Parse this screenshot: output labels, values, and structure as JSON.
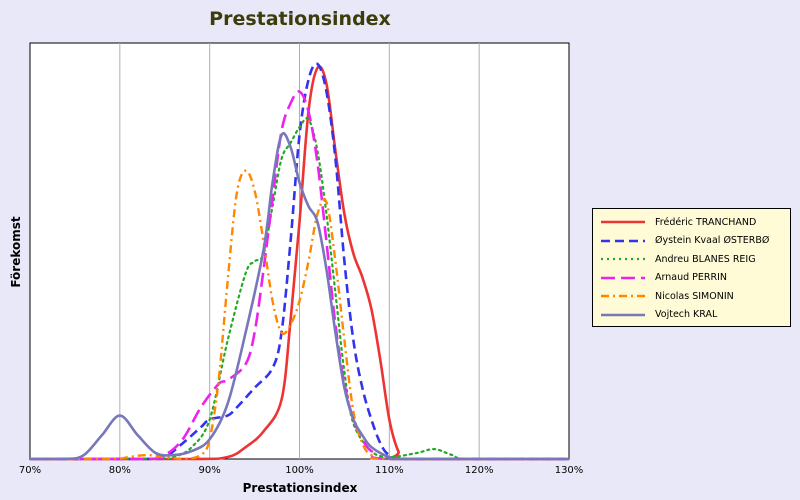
{
  "chart_data": {
    "type": "line",
    "title": "Prestationsindex",
    "xlabel": "Prestationsindex",
    "ylabel": "Förekomst",
    "xlim": [
      70,
      130
    ],
    "ylim": [
      0,
      1
    ],
    "x_ticks": [
      "70%",
      "80%",
      "90%",
      "100%",
      "110%",
      "120%",
      "130%"
    ],
    "grid": "vertical",
    "legend_position": "right",
    "series": [
      {
        "name": "Frédéric TRANCHAND",
        "color": "#ee3333",
        "style": "solid",
        "points": [
          [
            70,
            0
          ],
          [
            88,
            0
          ],
          [
            92,
            0.005
          ],
          [
            94,
            0.03
          ],
          [
            96,
            0.07
          ],
          [
            98,
            0.15
          ],
          [
            99,
            0.35
          ],
          [
            100,
            0.6
          ],
          [
            101,
            0.88
          ],
          [
            102,
            0.99
          ],
          [
            103,
            0.95
          ],
          [
            104,
            0.78
          ],
          [
            105,
            0.62
          ],
          [
            106,
            0.52
          ],
          [
            107,
            0.46
          ],
          [
            108,
            0.38
          ],
          [
            109,
            0.25
          ],
          [
            110,
            0.1
          ],
          [
            111,
            0.02
          ],
          [
            112,
            0
          ],
          [
            130,
            0
          ]
        ]
      },
      {
        "name": "Øystein Kvaal ØSTERBØ",
        "color": "#3333ee",
        "style": "dashed",
        "points": [
          [
            70,
            0
          ],
          [
            83,
            0
          ],
          [
            85,
            0.005
          ],
          [
            87,
            0.04
          ],
          [
            89,
            0.08
          ],
          [
            90,
            0.1
          ],
          [
            92,
            0.11
          ],
          [
            93,
            0.13
          ],
          [
            95,
            0.18
          ],
          [
            97,
            0.23
          ],
          [
            98,
            0.32
          ],
          [
            99,
            0.55
          ],
          [
            100,
            0.82
          ],
          [
            101,
            0.96
          ],
          [
            102,
            1.0
          ],
          [
            103,
            0.93
          ],
          [
            104,
            0.76
          ],
          [
            105,
            0.5
          ],
          [
            106,
            0.3
          ],
          [
            107,
            0.18
          ],
          [
            108,
            0.1
          ],
          [
            109,
            0.04
          ],
          [
            110,
            0.01
          ],
          [
            112,
            0
          ],
          [
            130,
            0
          ]
        ]
      },
      {
        "name": "Andreu BLANES REIG",
        "color": "#22aa22",
        "style": "dotted",
        "points": [
          [
            70,
            0
          ],
          [
            84,
            0
          ],
          [
            86,
            0.005
          ],
          [
            88,
            0.03
          ],
          [
            90,
            0.1
          ],
          [
            92,
            0.3
          ],
          [
            94,
            0.47
          ],
          [
            95,
            0.5
          ],
          [
            96,
            0.52
          ],
          [
            97,
            0.64
          ],
          [
            98,
            0.76
          ],
          [
            99,
            0.8
          ],
          [
            100,
            0.84
          ],
          [
            101,
            0.86
          ],
          [
            102,
            0.78
          ],
          [
            103,
            0.62
          ],
          [
            104,
            0.42
          ],
          [
            105,
            0.22
          ],
          [
            106,
            0.09
          ],
          [
            108,
            0.02
          ],
          [
            110,
            0.005
          ],
          [
            113,
            0.015
          ],
          [
            115,
            0.025
          ],
          [
            117,
            0.01
          ],
          [
            119,
            0
          ],
          [
            130,
            0
          ]
        ]
      },
      {
        "name": "Arnaud PERRIN",
        "color": "#ee22ee",
        "style": "longdash",
        "points": [
          [
            70,
            0
          ],
          [
            83,
            0
          ],
          [
            85,
            0.01
          ],
          [
            87,
            0.05
          ],
          [
            89,
            0.13
          ],
          [
            91,
            0.19
          ],
          [
            92,
            0.2
          ],
          [
            94,
            0.24
          ],
          [
            95,
            0.32
          ],
          [
            96,
            0.48
          ],
          [
            97,
            0.66
          ],
          [
            98,
            0.83
          ],
          [
            99,
            0.9
          ],
          [
            100,
            0.93
          ],
          [
            101,
            0.88
          ],
          [
            102,
            0.75
          ],
          [
            103,
            0.55
          ],
          [
            104,
            0.34
          ],
          [
            105,
            0.19
          ],
          [
            106,
            0.1
          ],
          [
            107,
            0.05
          ],
          [
            108,
            0.02
          ],
          [
            110,
            0
          ],
          [
            130,
            0
          ]
        ]
      },
      {
        "name": "Nicolas SIMONIN",
        "color": "#ff8800",
        "style": "dashdot",
        "points": [
          [
            70,
            0
          ],
          [
            79,
            0
          ],
          [
            81,
            0.005
          ],
          [
            83,
            0.01
          ],
          [
            85,
            0.005
          ],
          [
            87,
            0
          ],
          [
            89,
            0.01
          ],
          [
            90,
            0.05
          ],
          [
            91,
            0.2
          ],
          [
            92,
            0.45
          ],
          [
            93,
            0.67
          ],
          [
            94,
            0.73
          ],
          [
            95,
            0.68
          ],
          [
            96,
            0.55
          ],
          [
            97,
            0.4
          ],
          [
            98,
            0.32
          ],
          [
            99,
            0.34
          ],
          [
            100,
            0.4
          ],
          [
            101,
            0.5
          ],
          [
            102,
            0.62
          ],
          [
            103,
            0.65
          ],
          [
            104,
            0.5
          ],
          [
            105,
            0.3
          ],
          [
            106,
            0.12
          ],
          [
            107,
            0.04
          ],
          [
            108,
            0.01
          ],
          [
            110,
            0
          ],
          [
            130,
            0
          ]
        ]
      },
      {
        "name": "Vojtech KRAL",
        "color": "#7777bb",
        "style": "solid",
        "points": [
          [
            70,
            0
          ],
          [
            74,
            0
          ],
          [
            76,
            0.01
          ],
          [
            78,
            0.06
          ],
          [
            80,
            0.11
          ],
          [
            82,
            0.06
          ],
          [
            84,
            0.015
          ],
          [
            86,
            0.01
          ],
          [
            88,
            0.02
          ],
          [
            90,
            0.05
          ],
          [
            92,
            0.14
          ],
          [
            94,
            0.32
          ],
          [
            96,
            0.53
          ],
          [
            97,
            0.7
          ],
          [
            98,
            0.82
          ],
          [
            99,
            0.79
          ],
          [
            100,
            0.7
          ],
          [
            101,
            0.64
          ],
          [
            102,
            0.6
          ],
          [
            103,
            0.48
          ],
          [
            104,
            0.32
          ],
          [
            105,
            0.18
          ],
          [
            106,
            0.1
          ],
          [
            107,
            0.06
          ],
          [
            108,
            0.03
          ],
          [
            110,
            0.005
          ],
          [
            112,
            0
          ],
          [
            130,
            0
          ]
        ]
      }
    ]
  }
}
